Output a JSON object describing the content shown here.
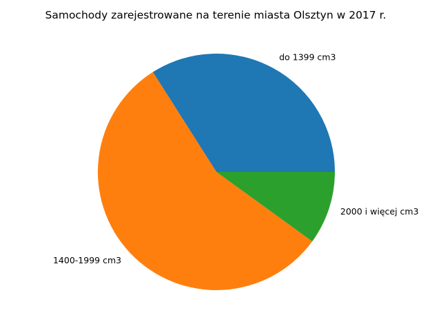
{
  "chart_data": {
    "type": "pie",
    "title": "Samochody zarejestrowane na terenie miasta Olsztyn w 2017 r.",
    "slices": [
      {
        "label": "do 1399 cm3",
        "value": 34.0,
        "color": "#1f77b4"
      },
      {
        "label": "1400-1999 cm3",
        "value": 56.0,
        "color": "#ff7f0e"
      },
      {
        "label": "2000 i więcej cm3",
        "value": 10.0,
        "color": "#2ca02c"
      }
    ],
    "start_angle_deg": 0,
    "direction": "counterclockwise",
    "legend": "none"
  }
}
